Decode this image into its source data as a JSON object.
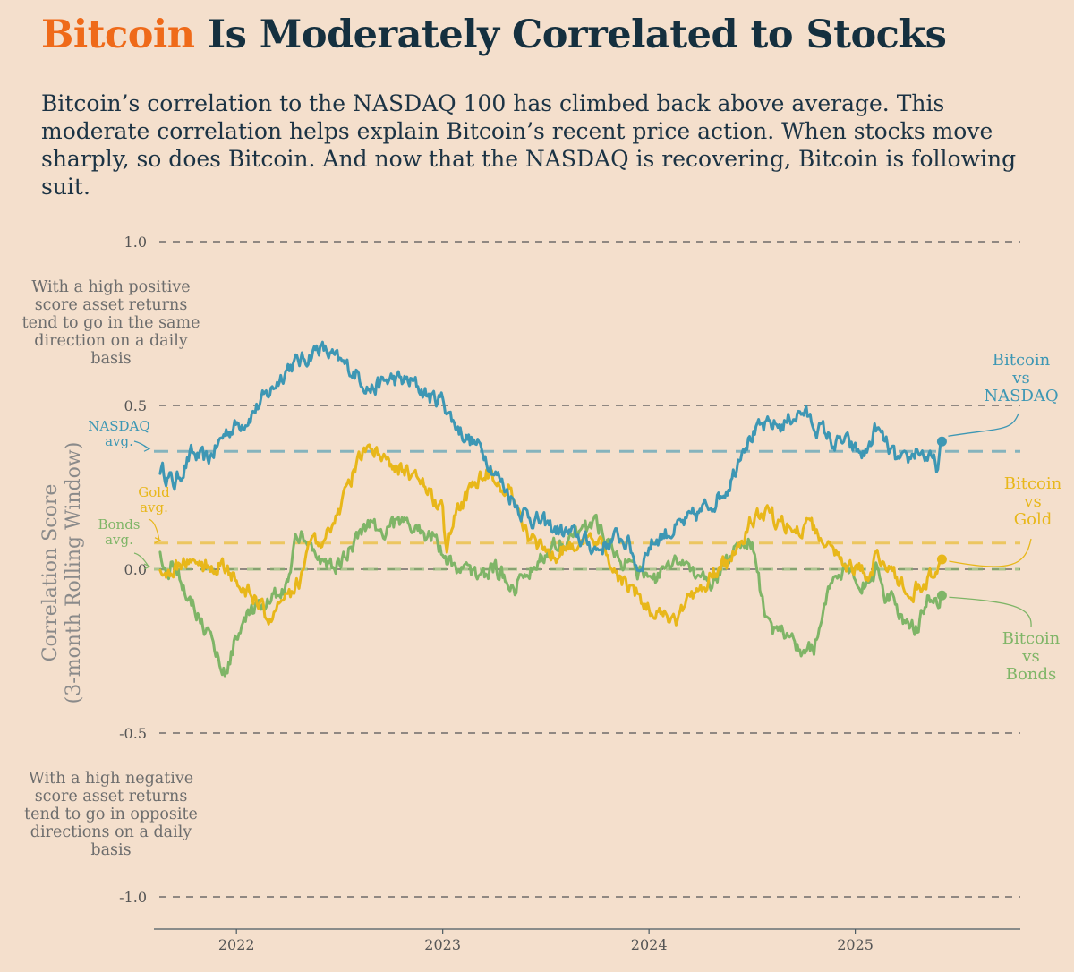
{
  "header": {
    "title_highlight": "Bitcoin",
    "title_rest": "Is Moderately Correlated to Stocks",
    "subtitle": "Bitcoin’s correlation to the NASDAQ 100 has climbed back above average. This moderate correlation helps explain Bitcoin’s recent price action. When stocks move sharply, so does Bitcoin. And now that the NASDAQ is recovering, Bitcoin is following suit."
  },
  "notes": {
    "positive": "With a high positive score asset returns tend to go in the same direction on a daily basis",
    "negative": "With a high negative score asset returns tend to go in opposite directions on a daily basis"
  },
  "chart_data": {
    "type": "line",
    "title": "Bitcoin Is Moderately Correlated to Stocks",
    "ylabel_line1": "Correlation Score",
    "ylabel_line2": "(3-month Rolling Window)",
    "xlabel": "",
    "ylim": [
      -1.0,
      1.0
    ],
    "xlim": [
      2021.6,
      2025.8
    ],
    "y_ticks": [
      {
        "value": 1.0,
        "label": "1.0"
      },
      {
        "value": 0.5,
        "label": "0.5"
      },
      {
        "value": 0.0,
        "label": "0.0"
      },
      {
        "value": -0.5,
        "label": "-0.5"
      },
      {
        "value": -1.0,
        "label": "-1.0"
      }
    ],
    "x_ticks": [
      {
        "value": 2022,
        "label": "2022"
      },
      {
        "value": 2023,
        "label": "2023"
      },
      {
        "value": 2024,
        "label": "2024"
      },
      {
        "value": 2025,
        "label": "2025"
      }
    ],
    "grid": true,
    "averages": [
      {
        "name": "NASDAQ avg.",
        "label_line1": "NASDAQ",
        "label_line2": "avg.",
        "value": 0.36,
        "color": "#3d97b4"
      },
      {
        "name": "Gold avg.",
        "label_line1": "Gold",
        "label_line2": "avg.",
        "value": 0.08,
        "color": "#e8b71a"
      },
      {
        "name": "Bonds avg.",
        "label_line1": "Bonds",
        "label_line2": "avg.",
        "value": 0.0,
        "color": "#7fb567"
      }
    ],
    "series": [
      {
        "name": "Bitcoin vs NASDAQ",
        "label_lines": [
          "Bitcoin",
          "vs",
          "NASDAQ"
        ],
        "color": "#3d97b4",
        "x": [
          2021.63,
          2021.7,
          2021.78,
          2021.86,
          2021.95,
          2022.05,
          2022.15,
          2022.25,
          2022.33,
          2022.4,
          2022.5,
          2022.58,
          2022.65,
          2022.75,
          2022.85,
          2022.95,
          2023.0,
          2023.05,
          2023.12,
          2023.2,
          2023.25,
          2023.3,
          2023.38,
          2023.45,
          2023.55,
          2023.65,
          2023.75,
          2023.8,
          2023.85,
          2023.9,
          2023.95,
          2024.0,
          2024.05,
          2024.12,
          2024.2,
          2024.3,
          2024.38,
          2024.42,
          2024.45,
          2024.5,
          2024.55,
          2024.6,
          2024.65,
          2024.7,
          2024.75,
          2024.8,
          2024.85,
          2024.9,
          2024.95,
          2025.0,
          2025.05,
          2025.1,
          2025.15,
          2025.2,
          2025.25,
          2025.3,
          2025.35,
          2025.4,
          2025.42
        ],
        "values": [
          0.31,
          0.26,
          0.35,
          0.33,
          0.42,
          0.46,
          0.53,
          0.62,
          0.64,
          0.68,
          0.63,
          0.6,
          0.55,
          0.58,
          0.57,
          0.52,
          0.52,
          0.45,
          0.4,
          0.36,
          0.3,
          0.25,
          0.18,
          0.15,
          0.12,
          0.1,
          0.06,
          0.08,
          0.1,
          0.08,
          0.0,
          0.07,
          0.1,
          0.12,
          0.15,
          0.2,
          0.25,
          0.31,
          0.38,
          0.41,
          0.43,
          0.44,
          0.44,
          0.47,
          0.48,
          0.44,
          0.42,
          0.38,
          0.39,
          0.36,
          0.35,
          0.43,
          0.38,
          0.33,
          0.32,
          0.37,
          0.34,
          0.31,
          0.39
        ]
      },
      {
        "name": "Bitcoin vs Gold",
        "label_lines": [
          "Bitcoin",
          "vs",
          "Gold"
        ],
        "color": "#e8b71a",
        "x": [
          2021.63,
          2021.7,
          2021.78,
          2021.85,
          2021.92,
          2022.0,
          2022.05,
          2022.1,
          2022.15,
          2022.2,
          2022.28,
          2022.35,
          2022.45,
          2022.5,
          2022.55,
          2022.6,
          2022.65,
          2022.75,
          2022.85,
          2022.95,
          2023.0,
          2023.02,
          2023.05,
          2023.15,
          2023.2,
          2023.25,
          2023.3,
          2023.35,
          2023.42,
          2023.5,
          2023.55,
          2023.65,
          2023.75,
          2023.8,
          2023.85,
          2023.9,
          2023.95,
          2024.0,
          2024.05,
          2024.1,
          2024.15,
          2024.2,
          2024.25,
          2024.3,
          2024.4,
          2024.45,
          2024.5,
          2024.55,
          2024.62,
          2024.7,
          2024.8,
          2024.85,
          2024.9,
          2024.95,
          2025.0,
          2025.05,
          2025.1,
          2025.15,
          2025.2,
          2025.25,
          2025.3,
          2025.35,
          2025.42
        ],
        "values": [
          0.0,
          0.0,
          0.03,
          0.01,
          0.02,
          -0.03,
          -0.07,
          -0.1,
          -0.15,
          -0.12,
          -0.08,
          0.05,
          0.12,
          0.18,
          0.27,
          0.35,
          0.36,
          0.33,
          0.28,
          0.22,
          0.17,
          0.05,
          0.15,
          0.26,
          0.3,
          0.28,
          0.26,
          0.22,
          0.1,
          0.06,
          0.05,
          0.09,
          0.07,
          0.05,
          -0.02,
          -0.05,
          -0.08,
          -0.12,
          -0.14,
          -0.16,
          -0.15,
          -0.08,
          -0.06,
          -0.02,
          0.03,
          0.1,
          0.15,
          0.18,
          0.15,
          0.13,
          0.12,
          0.08,
          0.05,
          0.02,
          0.0,
          -0.02,
          0.03,
          0.01,
          -0.03,
          -0.05,
          -0.06,
          -0.03,
          0.03
        ]
      },
      {
        "name": "Bitcoin vs Bonds",
        "label_lines": [
          "Bitcoin",
          "vs",
          "Bonds"
        ],
        "color": "#7fb567",
        "x": [
          2021.63,
          2021.66,
          2021.7,
          2021.75,
          2021.8,
          2021.85,
          2021.9,
          2021.95,
          2022.0,
          2022.05,
          2022.12,
          2022.18,
          2022.25,
          2022.28,
          2022.32,
          2022.35,
          2022.4,
          2022.45,
          2022.5,
          2022.55,
          2022.6,
          2022.65,
          2022.7,
          2022.75,
          2022.85,
          2022.95,
          2023.0,
          2023.05,
          2023.15,
          2023.25,
          2023.35,
          2023.45,
          2023.55,
          2023.65,
          2023.75,
          2023.85,
          2023.95,
          2024.0,
          2024.05,
          2024.1,
          2024.15,
          2024.2,
          2024.25,
          2024.3,
          2024.35,
          2024.4,
          2024.45,
          2024.5,
          2024.55,
          2024.6,
          2024.65,
          2024.7,
          2024.75,
          2024.8,
          2024.85,
          2024.9,
          2024.95,
          2025.0,
          2025.05,
          2025.1,
          2025.15,
          2025.2,
          2025.25,
          2025.3,
          2025.35,
          2025.42
        ],
        "values": [
          0.04,
          -0.02,
          0.02,
          -0.05,
          -0.12,
          -0.18,
          -0.25,
          -0.32,
          -0.2,
          -0.15,
          -0.12,
          -0.08,
          -0.05,
          0.08,
          0.12,
          0.08,
          0.03,
          0.0,
          0.02,
          0.06,
          0.12,
          0.15,
          0.11,
          0.14,
          0.13,
          0.1,
          0.05,
          0.02,
          -0.02,
          0.0,
          -0.05,
          0.02,
          0.08,
          0.11,
          0.14,
          0.05,
          -0.02,
          -0.02,
          -0.03,
          0.0,
          0.02,
          0.01,
          -0.02,
          -0.05,
          0.0,
          0.06,
          0.09,
          0.08,
          -0.1,
          -0.18,
          -0.2,
          -0.22,
          -0.25,
          -0.24,
          -0.1,
          -0.05,
          0.02,
          -0.02,
          -0.05,
          0.0,
          -0.08,
          -0.12,
          -0.16,
          -0.18,
          -0.1,
          -0.08
        ]
      }
    ]
  }
}
